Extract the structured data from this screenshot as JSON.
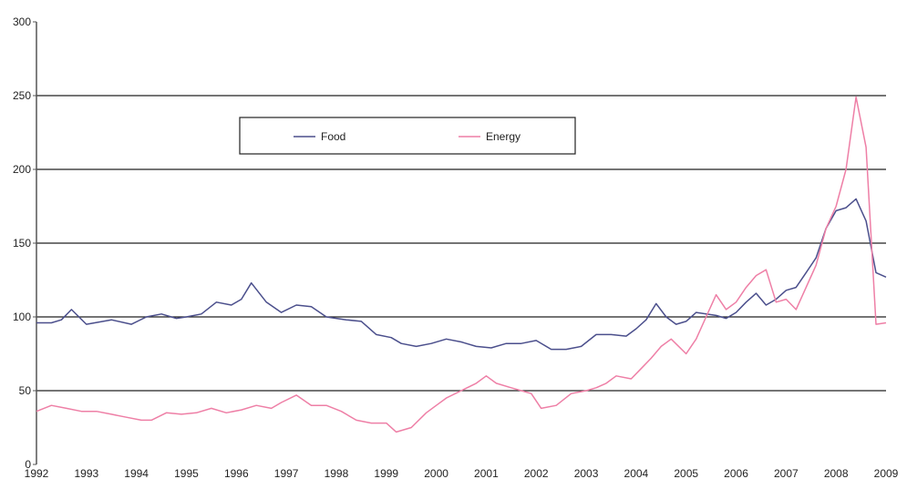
{
  "chart_data": {
    "type": "line",
    "title": "",
    "xlabel": "",
    "ylabel": "",
    "ylim": [
      0,
      300
    ],
    "yticks": [
      0,
      50,
      100,
      150,
      200,
      250,
      300
    ],
    "ytick_labels": [
      "0",
      "50",
      "100",
      "150",
      "200",
      "250",
      "300"
    ],
    "xlim": [
      1992,
      2009
    ],
    "xticks": [
      1992,
      1993,
      1994,
      1995,
      1996,
      1997,
      1998,
      1999,
      2000,
      2001,
      2002,
      2003,
      2004,
      2005,
      2006,
      2007,
      2008,
      2009
    ],
    "xtick_labels": [
      "1992",
      "1993",
      "1994",
      "1995",
      "1996",
      "1997",
      "1998",
      "1999",
      "2000",
      "2001",
      "2002",
      "2003",
      "2004",
      "2005",
      "2006",
      "2007",
      "2008",
      "2009"
    ],
    "grid": "horizontal",
    "legend": "top-left inside, horizontal box",
    "series": [
      {
        "name": "Food",
        "color": "#4b4f8c",
        "x": [
          1992.0,
          1992.3,
          1992.5,
          1992.7,
          1993.0,
          1993.5,
          1993.9,
          1994.2,
          1994.5,
          1994.8,
          1995.0,
          1995.3,
          1995.6,
          1995.9,
          1996.1,
          1996.3,
          1996.6,
          1996.9,
          1997.2,
          1997.5,
          1997.8,
          1998.2,
          1998.5,
          1998.8,
          1999.1,
          1999.3,
          1999.6,
          1999.9,
          2000.2,
          2000.5,
          2000.8,
          2001.1,
          2001.4,
          2001.7,
          2002.0,
          2002.3,
          2002.6,
          2002.9,
          2003.2,
          2003.5,
          2003.8,
          2004.0,
          2004.2,
          2004.4,
          2004.6,
          2004.8,
          2005.0,
          2005.2,
          2005.4,
          2005.6,
          2005.8,
          2006.0,
          2006.2,
          2006.4,
          2006.6,
          2006.8,
          2007.0,
          2007.2,
          2007.4,
          2007.6,
          2007.8,
          2008.0,
          2008.2,
          2008.4,
          2008.6,
          2008.8,
          2009.0
        ],
        "values": [
          96,
          96,
          98,
          105,
          95,
          98,
          95,
          100,
          102,
          99,
          100,
          102,
          110,
          108,
          112,
          123,
          110,
          103,
          108,
          107,
          100,
          98,
          97,
          88,
          86,
          82,
          80,
          82,
          85,
          83,
          80,
          79,
          82,
          82,
          84,
          78,
          78,
          80,
          88,
          88,
          87,
          92,
          98,
          109,
          100,
          95,
          97,
          103,
          102,
          101,
          99,
          103,
          110,
          116,
          108,
          112,
          118,
          120,
          130,
          140,
          160,
          172,
          174,
          180,
          165,
          130,
          127
        ]
      },
      {
        "name": "Energy",
        "color": "#ee7fa6",
        "x": [
          1992.0,
          1992.3,
          1992.6,
          1992.9,
          1993.2,
          1993.5,
          1993.8,
          1994.1,
          1994.3,
          1994.6,
          1994.9,
          1995.2,
          1995.5,
          1995.8,
          1996.1,
          1996.4,
          1996.7,
          1996.9,
          1997.2,
          1997.5,
          1997.8,
          1998.1,
          1998.4,
          1998.7,
          1999.0,
          1999.2,
          1999.5,
          1999.8,
          2000.0,
          2000.2,
          2000.5,
          2000.8,
          2001.0,
          2001.2,
          2001.5,
          2001.7,
          2001.9,
          2002.1,
          2002.4,
          2002.7,
          2003.0,
          2003.2,
          2003.4,
          2003.6,
          2003.9,
          2004.1,
          2004.3,
          2004.5,
          2004.7,
          2005.0,
          2005.2,
          2005.4,
          2005.6,
          2005.8,
          2006.0,
          2006.2,
          2006.4,
          2006.6,
          2006.8,
          2007.0,
          2007.2,
          2007.4,
          2007.6,
          2007.8,
          2008.0,
          2008.2,
          2008.4,
          2008.6,
          2008.8,
          2009.0
        ],
        "values": [
          36,
          40,
          38,
          36,
          36,
          34,
          32,
          30,
          30,
          35,
          34,
          35,
          38,
          35,
          37,
          40,
          38,
          42,
          47,
          40,
          40,
          36,
          30,
          28,
          28,
          22,
          25,
          35,
          40,
          45,
          50,
          55,
          60,
          55,
          52,
          50,
          48,
          38,
          40,
          48,
          50,
          52,
          55,
          60,
          58,
          65,
          72,
          80,
          85,
          75,
          85,
          100,
          115,
          105,
          110,
          120,
          128,
          132,
          110,
          112,
          105,
          120,
          135,
          160,
          175,
          200,
          249,
          215,
          95,
          96
        ]
      }
    ]
  }
}
